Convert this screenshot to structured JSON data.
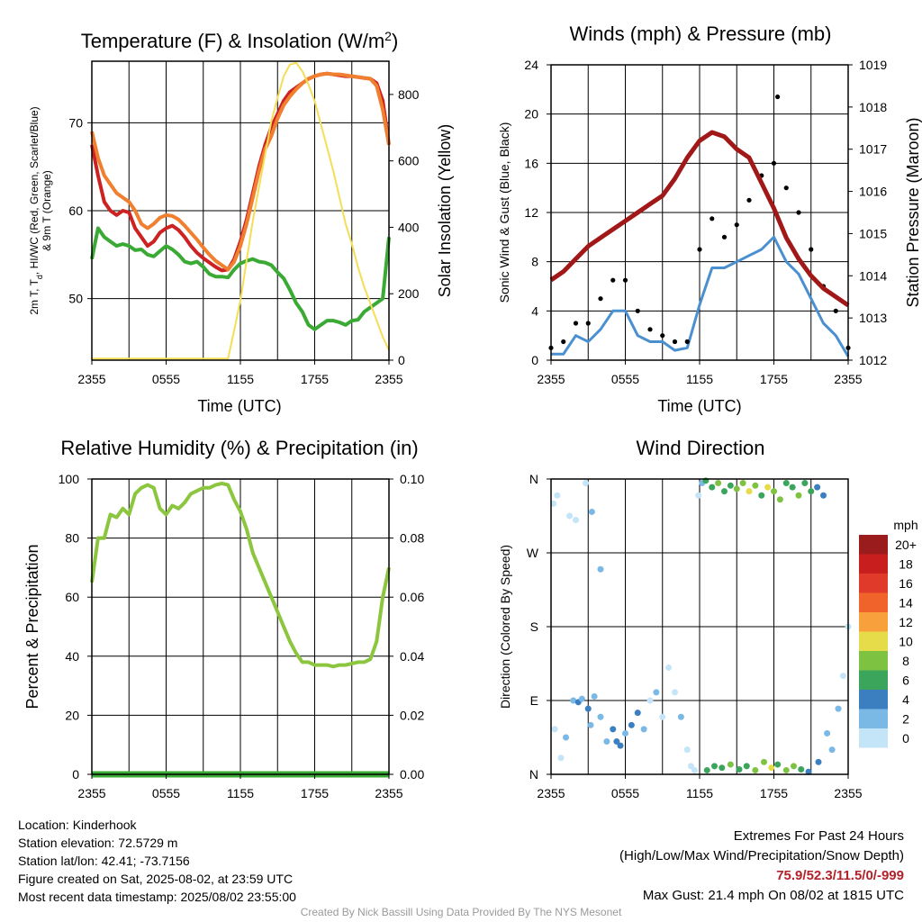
{
  "panels": {
    "temperature": {
      "title": "Temperature (F) & Insolation (W/m",
      "title_sup": "2",
      "title_end": ")",
      "ylabel_left": "2m T, T",
      "ylabel_left_sub": "d",
      "ylabel_left_end": ", HI/WC (Red, Green, Scarlet/Blue)",
      "ylabel_left_line2": "& 9m T (Orange)",
      "ylabel_right": "Solar Insolation (Yellow)",
      "xlabel": "Time (UTC)"
    },
    "winds": {
      "title": "Winds (mph) & Pressure (mb)",
      "ylabel_left": "Sonic Wind & Gust (Blue, Black)",
      "ylabel_right": "Station Pressure (Maroon)",
      "xlabel": "Time (UTC)"
    },
    "humidity": {
      "title": "Relative Humidity (%) & Precipitation (in)",
      "ylabel_left": "Percent & Precipitation"
    },
    "direction": {
      "title": "Wind Direction",
      "ylabel_left": "Direction (Colored By Speed)",
      "legend_title": "mph"
    }
  },
  "info_left": {
    "location": "Location: Kinderhook",
    "elevation": "Station elevation: 72.5729 m",
    "latlon": "Station lat/lon: 42.41; -73.7156",
    "created": "Figure created on Sat, 2025-08-02, at 23:59 UTC",
    "recent": "Most recent data timestamp: 2025/08/02 23:55:00"
  },
  "info_right": {
    "line1": "Extremes For Past 24 Hours",
    "line2": "(High/Low/Max Wind/Precipitation/Snow Depth)",
    "values": "75.9/52.3/11.5/0/-999",
    "gust": "Max Gust: 21.4 mph On 08/02 at 1815 UTC"
  },
  "credit": "Created By Nick Bassill Using Data Provided By The NYS Mesonet",
  "colors": {
    "temp_red": "#cc2222",
    "temp_orange": "#f08030",
    "dewpoint_green": "#3aaa35",
    "insolation_yellow": "#f5dd55",
    "wind_blue": "#4a90d0",
    "gust_black": "#000000",
    "pressure_maroon": "#a01818",
    "rh_green": "#8cc63f",
    "precip_green": "#3aaa35"
  },
  "chart_data": [
    {
      "type": "line",
      "panel": "temperature",
      "x_tick_labels": [
        "2355",
        "0555",
        "1155",
        "1755",
        "2355"
      ],
      "x_hours": [
        0,
        6,
        12,
        18,
        24
      ],
      "ylim_left": [
        43,
        77
      ],
      "yticks_left": [
        50,
        60,
        70
      ],
      "ylim_right": [
        0,
        900
      ],
      "yticks_right": [
        0,
        200,
        400,
        600,
        800
      ],
      "x": [
        0,
        0.5,
        1,
        1.5,
        2,
        2.5,
        3,
        3.5,
        4,
        4.5,
        5,
        5.5,
        6,
        6.5,
        7,
        7.5,
        8,
        8.5,
        9,
        9.5,
        10,
        10.5,
        11,
        11.5,
        12,
        12.5,
        13,
        13.5,
        14,
        14.5,
        15,
        15.5,
        16,
        16.5,
        17,
        17.5,
        18,
        18.5,
        19,
        19.5,
        20,
        20.5,
        21,
        21.5,
        22,
        22.5,
        23,
        23.5,
        24
      ],
      "series": [
        {
          "name": "2m T",
          "axis": "left",
          "color": "#cc2222",
          "values": [
            67.5,
            64,
            61,
            60,
            59.5,
            60,
            59.8,
            58,
            57,
            56,
            56.5,
            57.5,
            58,
            58.3,
            57.8,
            57,
            56,
            55.2,
            54.6,
            54.1,
            53.6,
            53.2,
            53.3,
            54.5,
            56.5,
            59,
            62,
            65,
            67.5,
            69.5,
            71,
            72.5,
            73.5,
            74,
            74.5,
            75,
            75.3,
            75.5,
            75.6,
            75.5,
            75.4,
            75.3,
            75.3,
            75.2,
            75.1,
            75,
            74.5,
            72.5,
            67.5
          ]
        },
        {
          "name": "9m T",
          "axis": "left",
          "color": "#f08030",
          "values": [
            69,
            66,
            64,
            63,
            62,
            61.5,
            61,
            60,
            58.5,
            58,
            58.5,
            59.2,
            59.5,
            59.4,
            59,
            58.3,
            57.5,
            56.7,
            55.8,
            55,
            54.3,
            53.8,
            53.3,
            54.2,
            56,
            58.5,
            61.5,
            64.5,
            67,
            68.5,
            70.5,
            72,
            73,
            73.8,
            74.5,
            75,
            75.3,
            75.5,
            75.6,
            75.5,
            75.5,
            75.4,
            75.3,
            75.2,
            75.1,
            75,
            74.2,
            71.5,
            67.5
          ]
        },
        {
          "name": "Td",
          "axis": "left",
          "color": "#3aaa35",
          "values": [
            54.5,
            58,
            57,
            56.5,
            56,
            56.2,
            56,
            55.5,
            55.6,
            55,
            54.8,
            55.4,
            56,
            55.6,
            55,
            54.2,
            54,
            54.2,
            53.6,
            52.8,
            52.5,
            52.5,
            52.4,
            53.3,
            54,
            54.3,
            54.5,
            54.2,
            54.1,
            53.8,
            53,
            52.3,
            51,
            49.5,
            48.5,
            47,
            46.5,
            47,
            47.5,
            47.5,
            47.3,
            47,
            47.5,
            47.6,
            48.5,
            49,
            49.5,
            50,
            57
          ]
        },
        {
          "name": "Insolation",
          "axis": "right",
          "color": "#f5dd55",
          "values": [
            5,
            5,
            5,
            5,
            5,
            5,
            5,
            5,
            5,
            5,
            5,
            5,
            5,
            5,
            5,
            5,
            5,
            5,
            5,
            5,
            5,
            5,
            5,
            90,
            180,
            300,
            420,
            520,
            620,
            720,
            790,
            855,
            890,
            895,
            870,
            830,
            780,
            710,
            640,
            570,
            490,
            410,
            350,
            280,
            220,
            170,
            120,
            70,
            30
          ]
        }
      ]
    },
    {
      "type": "line",
      "panel": "winds",
      "x_tick_labels": [
        "2355",
        "0555",
        "1155",
        "1755",
        "2355"
      ],
      "x_hours": [
        0,
        6,
        12,
        18,
        24
      ],
      "ylim_left": [
        0,
        24
      ],
      "yticks_left": [
        0,
        4,
        8,
        12,
        16,
        20,
        24
      ],
      "ylim_right": [
        1012,
        1019
      ],
      "yticks_right": [
        1012,
        1013,
        1014,
        1015,
        1016,
        1017,
        1018,
        1019
      ],
      "x": [
        0,
        1,
        2,
        3,
        4,
        5,
        6,
        7,
        8,
        9,
        10,
        11,
        12,
        13,
        14,
        15,
        16,
        17,
        18,
        19,
        20,
        21,
        22,
        23,
        24
      ],
      "series": [
        {
          "name": "Sonic Wind",
          "axis": "left",
          "color": "#4a90d0",
          "values": [
            0.5,
            0.5,
            2,
            1.5,
            2.5,
            4,
            4,
            2,
            1.5,
            1.5,
            0.8,
            1,
            4.5,
            7.5,
            7.5,
            8,
            8.5,
            9,
            10,
            8,
            7,
            5,
            3,
            2,
            0.3
          ]
        },
        {
          "name": "Gust",
          "axis": "left",
          "color": "#000000",
          "values": [
            1,
            1.5,
            3,
            3,
            5,
            6.5,
            6.5,
            4,
            2.5,
            2,
            1.5,
            1.5,
            9,
            11.5,
            10,
            11,
            13,
            15,
            16,
            14,
            12,
            9,
            6,
            4,
            1
          ]
        },
        {
          "name": "Pressure",
          "axis": "right",
          "color": "#a01818",
          "values": [
            1013.9,
            1014.1,
            1014.4,
            1014.7,
            1014.9,
            1015.1,
            1015.3,
            1015.5,
            1015.7,
            1015.9,
            1016.3,
            1016.8,
            1017.2,
            1017.4,
            1017.3,
            1017.0,
            1016.8,
            1016.2,
            1015.6,
            1014.9,
            1014.4,
            1014.0,
            1013.7,
            1013.5,
            1013.3
          ]
        }
      ],
      "max_gust_point": {
        "x": 18.3,
        "y": 21.4
      }
    },
    {
      "type": "line",
      "panel": "humidity",
      "x_tick_labels": [
        "2355",
        "0555",
        "1155",
        "1755",
        "2355"
      ],
      "x_hours": [
        0,
        6,
        12,
        18,
        24
      ],
      "ylim_left": [
        0,
        100
      ],
      "yticks_left": [
        0,
        20,
        40,
        60,
        80,
        100
      ],
      "ylim_right": [
        0,
        0.1
      ],
      "yticks_right": [
        "0.00",
        "0.02",
        "0.04",
        "0.06",
        "0.08",
        "0.10"
      ],
      "x": [
        0,
        0.5,
        1,
        1.5,
        2,
        2.5,
        3,
        3.5,
        4,
        4.5,
        5,
        5.5,
        6,
        6.5,
        7,
        7.5,
        8,
        8.5,
        9,
        9.5,
        10,
        10.5,
        11,
        11.5,
        12,
        12.5,
        13,
        13.5,
        14,
        14.5,
        15,
        15.5,
        16,
        16.5,
        17,
        17.5,
        18,
        18.5,
        19,
        19.5,
        20,
        20.5,
        21,
        21.5,
        22,
        22.5,
        23,
        23.5,
        24
      ],
      "series": [
        {
          "name": "RH",
          "axis": "left",
          "color": "#8cc63f",
          "values": [
            65,
            80,
            80,
            88,
            87,
            90,
            88,
            95,
            97,
            98,
            97,
            90,
            88,
            91,
            90,
            92,
            95,
            96,
            97,
            97,
            98,
            98.5,
            98,
            93,
            89,
            83,
            75,
            70,
            65,
            60,
            55,
            50,
            45,
            41,
            38,
            38,
            37,
            37,
            37,
            36.5,
            37,
            37,
            37.5,
            38,
            38,
            39,
            45,
            60,
            70
          ]
        },
        {
          "name": "Precipitation",
          "axis": "right",
          "color": "#3aaa35",
          "values": [
            0,
            0,
            0,
            0,
            0,
            0,
            0,
            0,
            0,
            0,
            0,
            0,
            0,
            0,
            0,
            0,
            0,
            0,
            0,
            0,
            0,
            0,
            0,
            0,
            0,
            0,
            0,
            0,
            0,
            0,
            0,
            0,
            0,
            0,
            0,
            0,
            0,
            0,
            0,
            0,
            0,
            0,
            0,
            0,
            0,
            0,
            0,
            0,
            0
          ]
        }
      ]
    },
    {
      "type": "scatter",
      "panel": "direction",
      "x_tick_labels": [
        "2355",
        "0555",
        "1155",
        "1755",
        "2355"
      ],
      "x_hours": [
        0,
        6,
        12,
        18,
        24
      ],
      "ylim_degrees": [
        0,
        360
      ],
      "ytick_labels": [
        "N",
        "E",
        "S",
        "W",
        "N"
      ],
      "yticks_degrees": [
        0,
        90,
        180,
        270,
        360
      ],
      "points": [
        {
          "x": 0.2,
          "y": 330,
          "s": 1
        },
        {
          "x": 0.5,
          "y": 340,
          "s": 1
        },
        {
          "x": 1.5,
          "y": 315,
          "s": 1
        },
        {
          "x": 2.0,
          "y": 310,
          "s": 1
        },
        {
          "x": 2.8,
          "y": 355,
          "s": 1
        },
        {
          "x": 3.3,
          "y": 320,
          "s": 3
        },
        {
          "x": 4.0,
          "y": 250,
          "s": 2
        },
        {
          "x": 0.3,
          "y": 55,
          "s": 1
        },
        {
          "x": 0.8,
          "y": 20,
          "s": 1
        },
        {
          "x": 1.2,
          "y": 45,
          "s": 2
        },
        {
          "x": 1.8,
          "y": 90,
          "s": 3
        },
        {
          "x": 2.2,
          "y": 88,
          "s": 4
        },
        {
          "x": 2.5,
          "y": 92,
          "s": 3
        },
        {
          "x": 3.0,
          "y": 80,
          "s": 4
        },
        {
          "x": 3.2,
          "y": 60,
          "s": 3
        },
        {
          "x": 3.5,
          "y": 95,
          "s": 2
        },
        {
          "x": 4.0,
          "y": 70,
          "s": 2
        },
        {
          "x": 4.5,
          "y": 40,
          "s": 3
        },
        {
          "x": 5.0,
          "y": 55,
          "s": 4
        },
        {
          "x": 5.3,
          "y": 40,
          "s": 4
        },
        {
          "x": 5.6,
          "y": 35,
          "s": 4
        },
        {
          "x": 6.0,
          "y": 50,
          "s": 3
        },
        {
          "x": 6.5,
          "y": 60,
          "s": 4
        },
        {
          "x": 7.0,
          "y": 75,
          "s": 4
        },
        {
          "x": 7.5,
          "y": 55,
          "s": 2
        },
        {
          "x": 8.0,
          "y": 90,
          "s": 1
        },
        {
          "x": 8.5,
          "y": 100,
          "s": 2
        },
        {
          "x": 9.0,
          "y": 70,
          "s": 1
        },
        {
          "x": 9.5,
          "y": 130,
          "s": 1
        },
        {
          "x": 10.0,
          "y": 100,
          "s": 1
        },
        {
          "x": 10.5,
          "y": 70,
          "s": 2
        },
        {
          "x": 11.0,
          "y": 30,
          "s": 1
        },
        {
          "x": 11.3,
          "y": 10,
          "s": 1
        },
        {
          "x": 11.6,
          "y": 5,
          "s": 1
        },
        {
          "x": 11.9,
          "y": 340,
          "s": 1
        },
        {
          "x": 12.2,
          "y": 355,
          "s": 2
        },
        {
          "x": 12.5,
          "y": 358,
          "s": 7
        },
        {
          "x": 13.0,
          "y": 350,
          "s": 7
        },
        {
          "x": 13.5,
          "y": 355,
          "s": 8
        },
        {
          "x": 14.0,
          "y": 345,
          "s": 6
        },
        {
          "x": 14.5,
          "y": 352,
          "s": 7
        },
        {
          "x": 15.0,
          "y": 348,
          "s": 9
        },
        {
          "x": 15.5,
          "y": 355,
          "s": 8
        },
        {
          "x": 16.0,
          "y": 345,
          "s": 10
        },
        {
          "x": 16.5,
          "y": 352,
          "s": 9
        },
        {
          "x": 17.0,
          "y": 340,
          "s": 7
        },
        {
          "x": 17.5,
          "y": 350,
          "s": 11
        },
        {
          "x": 18.0,
          "y": 345,
          "s": 8
        },
        {
          "x": 18.5,
          "y": 335,
          "s": 9
        },
        {
          "x": 19.0,
          "y": 355,
          "s": 7
        },
        {
          "x": 19.5,
          "y": 350,
          "s": 6
        },
        {
          "x": 20.0,
          "y": 340,
          "s": 8
        },
        {
          "x": 20.5,
          "y": 355,
          "s": 7
        },
        {
          "x": 21.0,
          "y": 345,
          "s": 6
        },
        {
          "x": 21.5,
          "y": 350,
          "s": 5
        },
        {
          "x": 22.0,
          "y": 340,
          "s": 5
        },
        {
          "x": 12.6,
          "y": 5,
          "s": 6
        },
        {
          "x": 13.2,
          "y": 10,
          "s": 7
        },
        {
          "x": 13.8,
          "y": 8,
          "s": 7
        },
        {
          "x": 14.5,
          "y": 12,
          "s": 8
        },
        {
          "x": 15.2,
          "y": 6,
          "s": 7
        },
        {
          "x": 15.8,
          "y": 10,
          "s": 6
        },
        {
          "x": 16.5,
          "y": 5,
          "s": 8
        },
        {
          "x": 17.2,
          "y": 15,
          "s": 9
        },
        {
          "x": 17.8,
          "y": 8,
          "s": 10
        },
        {
          "x": 18.3,
          "y": 12,
          "s": 7
        },
        {
          "x": 19.0,
          "y": 5,
          "s": 8
        },
        {
          "x": 19.6,
          "y": 10,
          "s": 9
        },
        {
          "x": 20.2,
          "y": 6,
          "s": 7
        },
        {
          "x": 20.8,
          "y": 3,
          "s": 5
        },
        {
          "x": 21.6,
          "y": 15,
          "s": 4
        },
        {
          "x": 22.3,
          "y": 50,
          "s": 3
        },
        {
          "x": 22.7,
          "y": 30,
          "s": 3
        },
        {
          "x": 23.2,
          "y": 80,
          "s": 2
        },
        {
          "x": 23.6,
          "y": 120,
          "s": 1
        },
        {
          "x": 24.0,
          "y": 180,
          "s": 1
        }
      ],
      "speed_scale": {
        "labels": [
          "20+",
          "18",
          "16",
          "14",
          "12",
          "10",
          "8",
          "6",
          "4",
          "2",
          "0"
        ],
        "colors": [
          "#9b1c1c",
          "#c81e1e",
          "#e03a2a",
          "#f0642c",
          "#f8a03c",
          "#e6dc4a",
          "#7ec242",
          "#3ca55c",
          "#3c7fc0",
          "#7ab8e6",
          "#c4e4f8"
        ]
      }
    }
  ]
}
